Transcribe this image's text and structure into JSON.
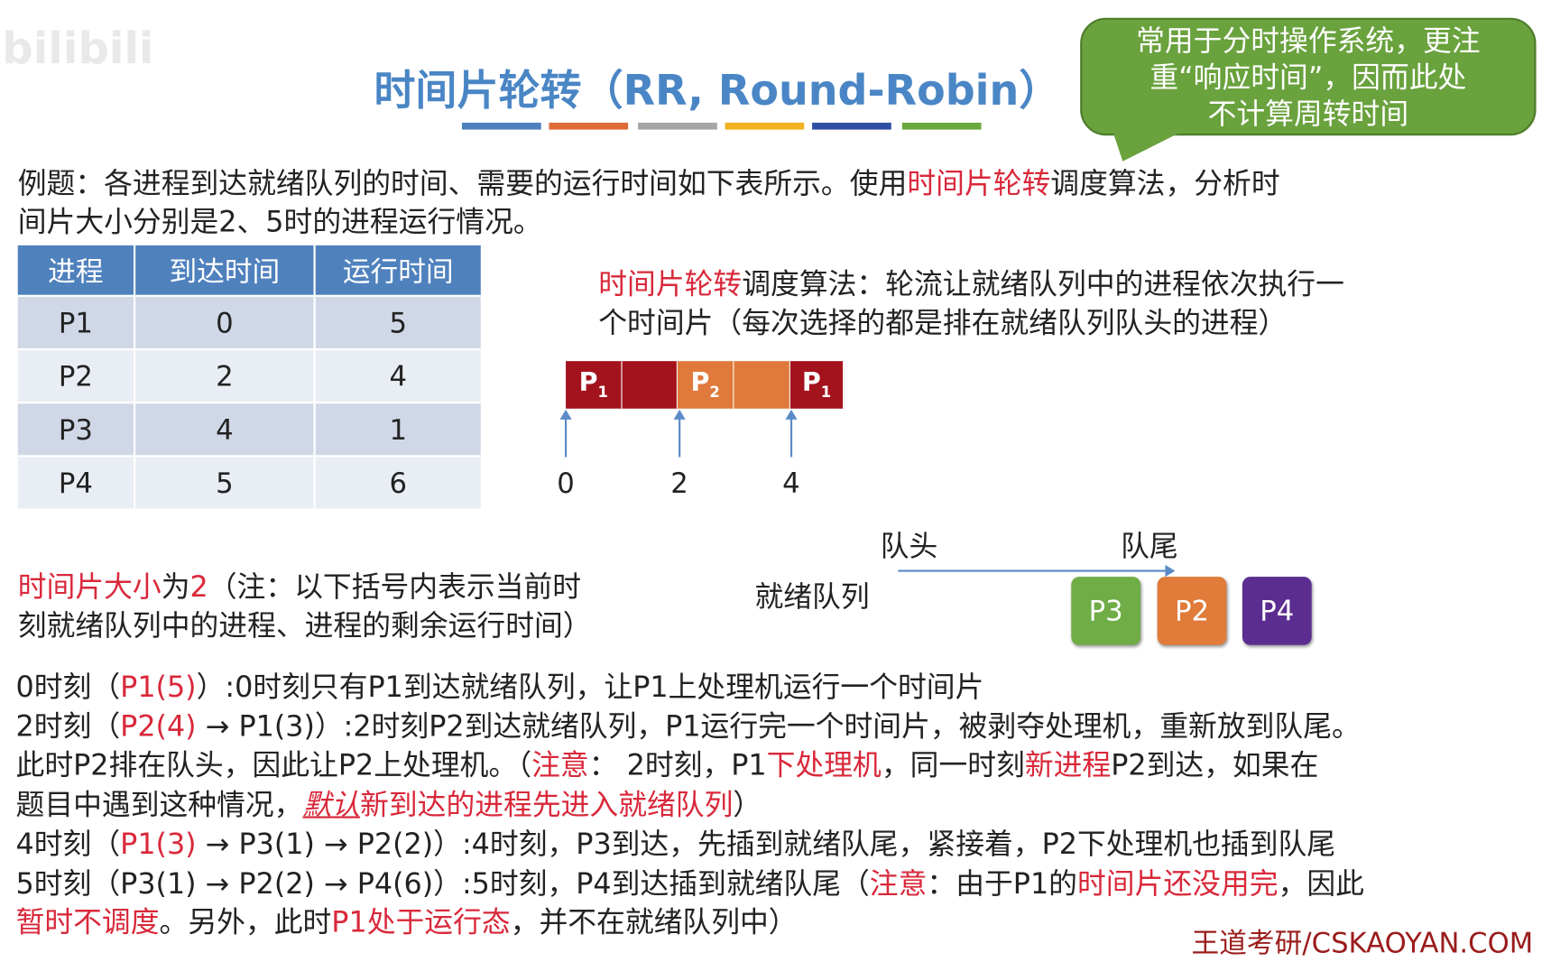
{
  "watermark": "bilibili",
  "title": "时间片轮转（RR, Round-Robin）",
  "title_bar_colors": [
    "#4f81bd",
    "#dd6b35",
    "#a5a5a5",
    "#f2b11f",
    "#2e4fa3",
    "#6aa83e"
  ],
  "callout": [
    "常用于分时操作系统，更注",
    "重“响应时间”，因而此处",
    "不计算周转时间"
  ],
  "problem": [
    [
      {
        "t": "例题：各进程到达就绪队列的时间、需要的运行时间如下表所示。使用"
      },
      {
        "t": "时间片轮转",
        "s": "red"
      },
      {
        "t": "调度算法，分析时"
      }
    ],
    [
      {
        "t": "间片大小分别是2、5时的进程运行情况。"
      }
    ]
  ],
  "table": {
    "headers": [
      "进程",
      "到达时间",
      "运行时间"
    ],
    "rows": [
      [
        "P1",
        "0",
        "5"
      ],
      [
        "P2",
        "2",
        "4"
      ],
      [
        "P3",
        "4",
        "1"
      ],
      [
        "P4",
        "5",
        "6"
      ]
    ]
  },
  "definition": [
    [
      {
        "t": "时间片轮转",
        "s": "red"
      },
      {
        "t": "调度算法：轮流让就绪队列中的进程依次执行一"
      }
    ],
    [
      {
        "t": "个时间片（每次选择的都是排在就绪队列队头的进程）"
      }
    ]
  ],
  "gantt": {
    "segments": [
      {
        "label": "P1",
        "color": "#a3131d"
      },
      {
        "label": "",
        "color": "#a3131d"
      },
      {
        "label": "P2",
        "color": "#df7a3c"
      },
      {
        "label": "",
        "color": "#df7a3c"
      },
      {
        "label": "P1",
        "color": "#a3131d"
      }
    ],
    "ticks": [
      "0",
      "2",
      "4"
    ]
  },
  "queue": {
    "head": "队头",
    "tail": "队尾",
    "label": "就绪队列",
    "items": [
      {
        "label": "P3",
        "color": "#70ad47"
      },
      {
        "label": "P2",
        "color": "#e07b39"
      },
      {
        "label": "P4",
        "color": "#5b2d90"
      }
    ]
  },
  "slice_note": [
    [
      {
        "t": "时间片大小",
        "s": "red"
      },
      {
        "t": "为"
      },
      {
        "t": "2",
        "s": "red"
      },
      {
        "t": "（注：以下括号内表示当前时"
      }
    ],
    [
      {
        "t": "刻就绪队列中的进程、进程的剩余运行时间）"
      }
    ]
  ],
  "steps": [
    [
      {
        "t": "0时刻（"
      },
      {
        "t": "P1(5)",
        "s": "red"
      },
      {
        "t": "）:0时刻只有P1到达就绪队列，让P1上处理机运行一个时间片"
      }
    ],
    [
      {
        "t": "2时刻（"
      },
      {
        "t": "P2(4)",
        "s": "red"
      },
      {
        "t": " → P1(3)）:2时刻P2到达就绪队列，P1运行完一个时间片，被剥夺处理机，重新放到队尾。"
      }
    ],
    [
      {
        "t": "此时P2排在队头，因此让P2上处理机。（"
      },
      {
        "t": "注意",
        "s": "red"
      },
      {
        "t": "： 2时刻，P1"
      },
      {
        "t": "下处理机",
        "s": "red"
      },
      {
        "t": "，同一时刻"
      },
      {
        "t": "新进程",
        "s": "red"
      },
      {
        "t": "P2到达，如果在"
      }
    ],
    [
      {
        "t": "题目中遇到这种情况，"
      },
      {
        "t": "默认",
        "s": "red ital"
      },
      {
        "t": "新到达的进程先进入就绪队列",
        "s": "red"
      },
      {
        "t": "）"
      }
    ],
    [
      {
        "t": "4时刻（"
      },
      {
        "t": "P1(3)",
        "s": "red"
      },
      {
        "t": " → P3(1) → P2(2)）:4时刻，P3到达，先插到就绪队尾，紧接着，P2下处理机也插到队尾"
      }
    ],
    [
      {
        "t": "5时刻（P3(1) → P2(2) → P4(6)）:5时刻，P4到达插到就绪队尾（"
      },
      {
        "t": "注意",
        "s": "red"
      },
      {
        "t": "：由于P1的"
      },
      {
        "t": "时间片还没用完",
        "s": "red"
      },
      {
        "t": "，因此"
      }
    ],
    [
      {
        "t": "暂时不调度",
        "s": "red"
      },
      {
        "t": "。另外，此时"
      },
      {
        "t": "P1处于运行态",
        "s": "red"
      },
      {
        "t": "，并不在就绪队列中）"
      }
    ]
  ],
  "footer": "王道考研/CSKAOYAN.COM"
}
